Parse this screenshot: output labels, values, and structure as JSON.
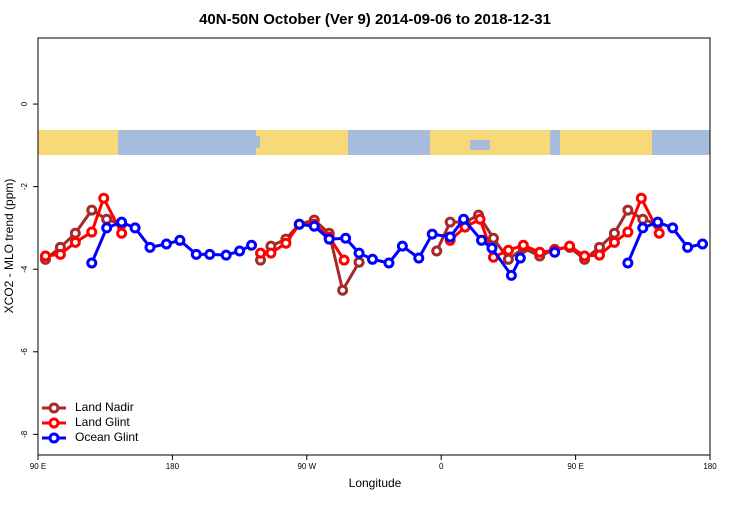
{
  "chart_data": {
    "type": "line",
    "title": "40N-50N October (Ver 9)   2014-09-06 to 2018-12-31",
    "x_label": "Longitude",
    "y_label": "XCO2 - MLO trend (ppm)",
    "xlim": [
      90,
      540
    ],
    "ylim": [
      -8.5,
      1.6
    ],
    "xticks": [
      {
        "value": 90,
        "label": "90 E"
      },
      180,
      {
        "value": 270,
        "label": "90 W"
      },
      {
        "value": 360,
        "label": "0"
      },
      {
        "value": 450,
        "label": "90 E"
      },
      {
        "value": 540,
        "label": "180"
      }
    ],
    "yticks": [
      0,
      -2,
      -4,
      -6,
      -8
    ],
    "legend": "bottom-left",
    "series": [
      {
        "name": "Land Nadir",
        "color": "#a52a2a",
        "x": [
          95,
          105,
          115,
          126,
          136,
          146,
          190,
          239,
          246,
          256,
          265,
          275,
          285,
          294,
          305,
          330,
          357,
          366,
          376,
          385,
          395,
          405,
          415,
          426,
          436,
          446,
          456,
          466,
          476,
          485,
          495,
          505
        ],
        "values": [
          -3.76,
          -3.47,
          -3.13,
          -2.57,
          -2.79,
          -2.91,
          null,
          -3.78,
          -3.44,
          -3.27,
          -2.91,
          -2.81,
          -3.13,
          -4.51,
          -3.83,
          null,
          -3.56,
          -2.86,
          -2.86,
          -2.69,
          -3.25,
          -3.76,
          -3.49,
          -3.68,
          -3.52,
          -3.47,
          -3.76,
          -3.47,
          -3.13,
          -2.57,
          -2.79,
          -2.91
        ]
      },
      {
        "name": "Land Glint",
        "color": "#ff0000",
        "x": [
          95,
          105,
          115,
          126,
          134,
          146,
          190,
          239,
          246,
          256,
          265,
          275,
          285,
          295,
          330,
          366,
          376,
          386,
          395,
          405,
          415,
          426,
          436,
          446,
          456,
          466,
          476,
          485,
          494,
          506
        ],
        "values": [
          -3.68,
          -3.64,
          -3.35,
          -3.1,
          -2.28,
          -3.13,
          null,
          -3.61,
          -3.61,
          -3.37,
          -2.91,
          -2.91,
          -3.22,
          -3.78,
          null,
          -3.3,
          -2.98,
          -2.79,
          -3.71,
          -3.54,
          -3.42,
          -3.59,
          -3.54,
          -3.44,
          -3.68,
          -3.66,
          -3.35,
          -3.1,
          -2.28,
          -3.13
        ]
      },
      {
        "name": "Ocean Glint",
        "color": "#0000ff",
        "x": [
          126,
          136,
          146,
          155,
          165,
          176,
          185,
          196,
          205,
          216,
          225,
          233,
          250,
          265,
          275,
          285,
          296,
          305,
          314,
          325,
          334,
          345,
          354,
          366,
          375,
          387,
          394,
          407,
          413,
          425,
          436,
          460,
          485,
          495,
          505,
          515,
          525,
          535
        ],
        "values": [
          -3.85,
          -3.0,
          -2.86,
          -3.0,
          -3.47,
          -3.39,
          -3.3,
          -3.64,
          -3.64,
          -3.66,
          -3.56,
          -3.42,
          null,
          -2.91,
          -2.96,
          -3.27,
          -3.25,
          -3.61,
          -3.76,
          -3.85,
          -3.44,
          -3.73,
          -3.15,
          -3.22,
          -2.79,
          -3.3,
          -3.49,
          -4.15,
          -3.73,
          null,
          -3.59,
          null,
          -3.85,
          -3.0,
          -2.86,
          -3.0,
          -3.47,
          -3.39
        ]
      }
    ]
  }
}
